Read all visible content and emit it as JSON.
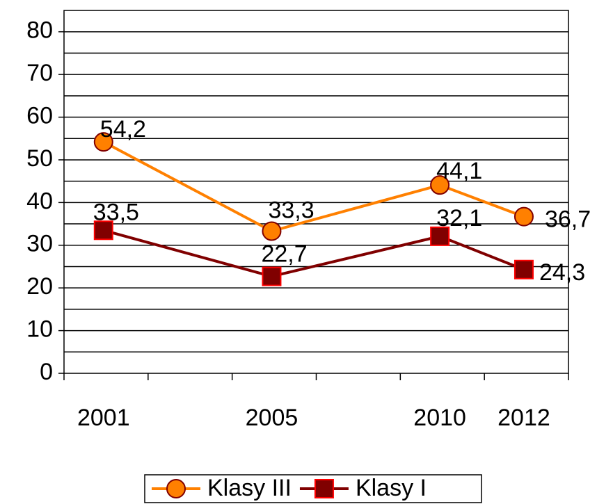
{
  "chart_data": {
    "type": "line",
    "categories": [
      "2001",
      "2005",
      "2010",
      "2012"
    ],
    "series": [
      {
        "name": "Klasy III",
        "color": "#ff8000",
        "marker": "circle",
        "values": [
          54.2,
          33.3,
          44.1,
          36.7
        ],
        "value_labels": [
          "54,2",
          "33,3",
          "44,1",
          "36,7"
        ]
      },
      {
        "name": "Klasy I",
        "color": "#800000",
        "marker": "square",
        "values": [
          33.5,
          22.7,
          32.1,
          24.3
        ],
        "value_labels": [
          "33,5",
          "22,7",
          "32,1",
          "24,3"
        ]
      }
    ],
    "ylim": [
      0,
      85
    ],
    "yticks": [
      0,
      10,
      20,
      30,
      40,
      50,
      60,
      70,
      80
    ],
    "minor_yticks": [
      5,
      15,
      25,
      35,
      45,
      55,
      65,
      75
    ],
    "grid": true,
    "legend": "bottom"
  }
}
